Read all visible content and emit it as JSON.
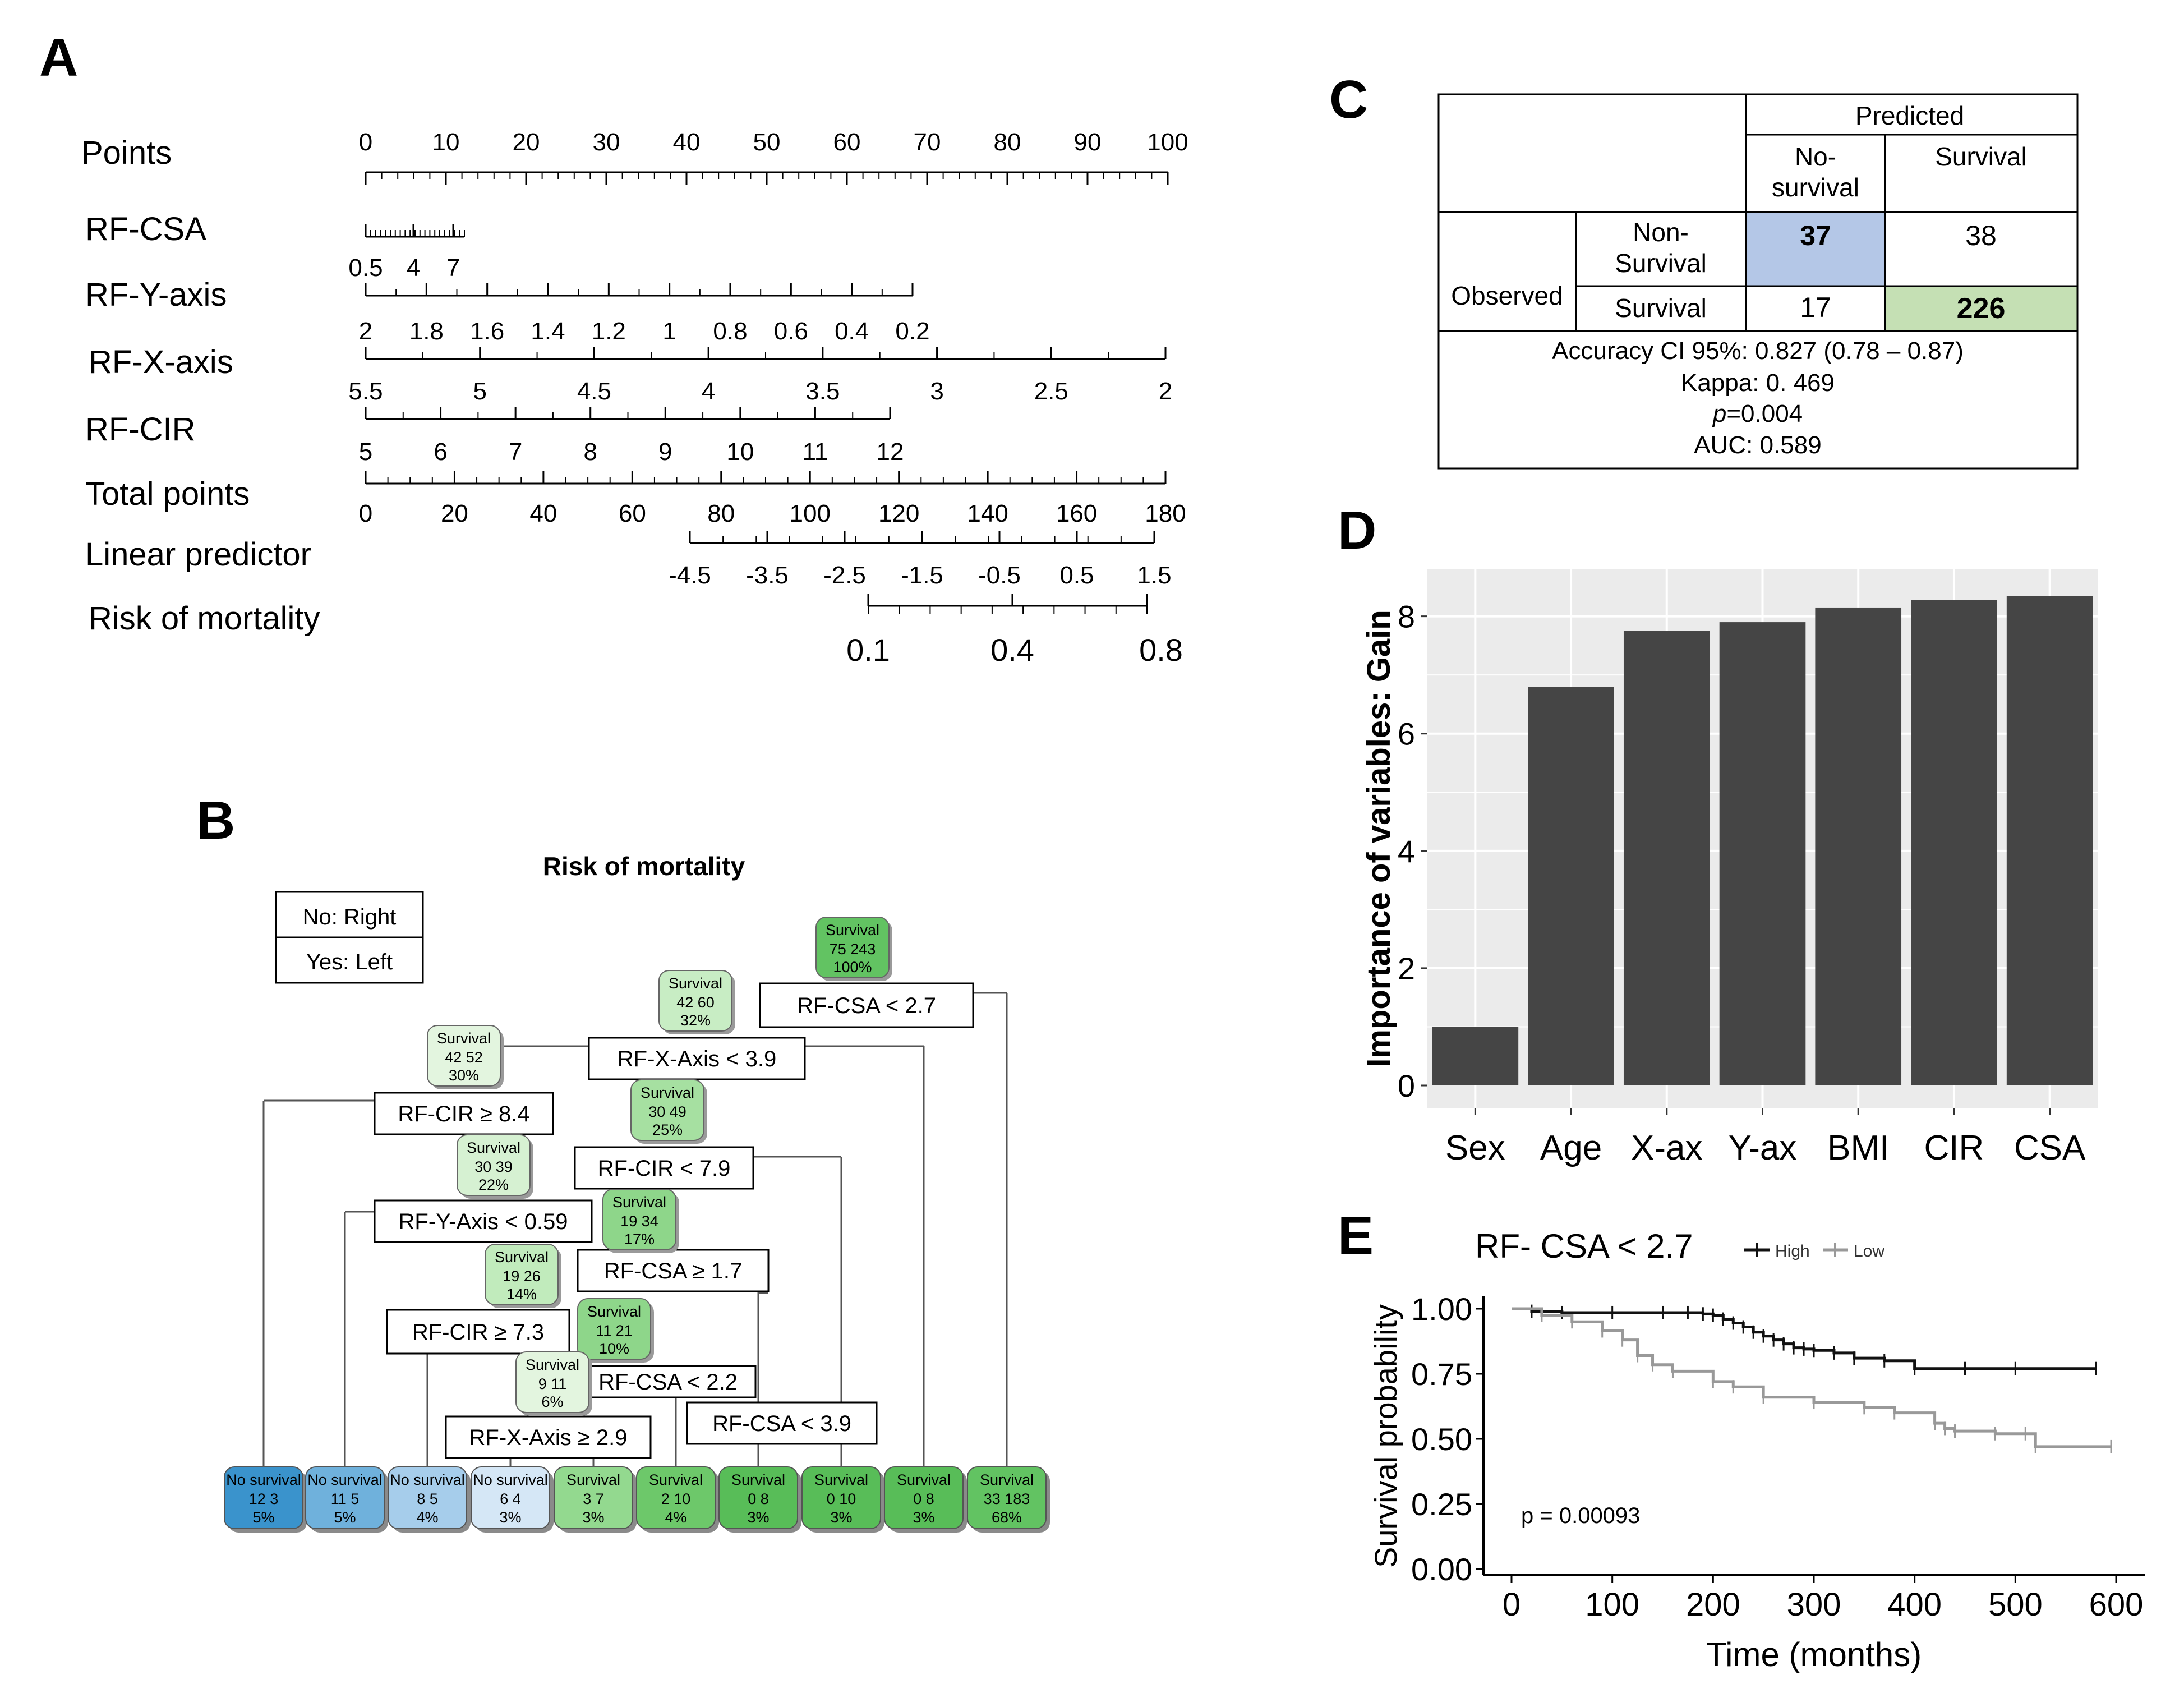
{
  "panel_labels": {
    "a": "A",
    "b": "B",
    "c": "C",
    "d": "D",
    "e": "E"
  },
  "nomogram": {
    "rows": [
      {
        "label": "Points",
        "ticks": [
          "0",
          "10",
          "20",
          "30",
          "40",
          "50",
          "60",
          "70",
          "80",
          "90",
          "100"
        ]
      },
      {
        "label": "RF-CSA",
        "ticks": [
          "0.5",
          "4",
          "7"
        ]
      },
      {
        "label": "RF-Y-axis",
        "ticks": [
          "2",
          "1.8",
          "1.6",
          "1.4",
          "1.2",
          "1",
          "0.8",
          "0.6",
          "0.4",
          "0.2"
        ]
      },
      {
        "label": "RF-X-axis",
        "ticks": [
          "5.5",
          "5",
          "4.5",
          "4",
          "3.5",
          "3",
          "2.5",
          "2"
        ]
      },
      {
        "label": "RF-CIR",
        "ticks": [
          "5",
          "6",
          "7",
          "8",
          "9",
          "10",
          "11",
          "12"
        ]
      },
      {
        "label": "Total points",
        "ticks": [
          "0",
          "20",
          "40",
          "60",
          "80",
          "100",
          "120",
          "140",
          "160",
          "180"
        ]
      },
      {
        "label": "Linear predictor",
        "ticks": [
          "-4.5",
          "-3.5",
          "-2.5",
          "-1.5",
          "-0.5",
          "0.5",
          "1.5"
        ]
      },
      {
        "label": "Risk of mortality",
        "ticks": [
          "0.1",
          "0.4",
          "0.8"
        ]
      }
    ]
  },
  "tree": {
    "title": "Risk of mortality",
    "legend": [
      "No: Right",
      "Yes: Left"
    ],
    "splits": [
      "RF-CSA < 2.7",
      "RF-X-Axis < 3.9",
      "RF-CIR ≥ 8.4",
      "RF-CIR < 7.9",
      "RF-Y-Axis < 0.59",
      "RF-CSA ≥ 1.7",
      "RF-CIR ≥ 7.3",
      "RF-CSA < 2.2",
      "RF-CSA < 3.9",
      "RF-X-Axis ≥ 2.9"
    ],
    "internal_nodes": [
      {
        "cls": "Survival",
        "counts": "75  243",
        "pct": "100%"
      },
      {
        "cls": "Survival",
        "counts": "42  60",
        "pct": "32%"
      },
      {
        "cls": "Survival",
        "counts": "42  52",
        "pct": "30%"
      },
      {
        "cls": "Survival",
        "counts": "30  49",
        "pct": "25%"
      },
      {
        "cls": "Survival",
        "counts": "30  39",
        "pct": "22%"
      },
      {
        "cls": "Survival",
        "counts": "19  34",
        "pct": "17%"
      },
      {
        "cls": "Survival",
        "counts": "19  26",
        "pct": "14%"
      },
      {
        "cls": "Survival",
        "counts": "11  21",
        "pct": "10%"
      },
      {
        "cls": "Survival",
        "counts": "9  11",
        "pct": "6%"
      }
    ],
    "leaves": [
      {
        "cls": "No survival",
        "counts": "12  3",
        "pct": "5%",
        "color": "#3a93cc"
      },
      {
        "cls": "No survival",
        "counts": "11  5",
        "pct": "5%",
        "color": "#6fb1dc"
      },
      {
        "cls": "No survival",
        "counts": "8  5",
        "pct": "4%",
        "color": "#a6cdeb"
      },
      {
        "cls": "No survival",
        "counts": "6  4",
        "pct": "3%",
        "color": "#d5e7f6"
      },
      {
        "cls": "Survival",
        "counts": "3  7",
        "pct": "3%",
        "color": "#93d98f"
      },
      {
        "cls": "Survival",
        "counts": "2  10",
        "pct": "4%",
        "color": "#6dc86a"
      },
      {
        "cls": "Survival",
        "counts": "0  8",
        "pct": "3%",
        "color": "#58bd58"
      },
      {
        "cls": "Survival",
        "counts": "0  10",
        "pct": "3%",
        "color": "#58bd58"
      },
      {
        "cls": "Survival",
        "counts": "0  8",
        "pct": "3%",
        "color": "#58bd58"
      },
      {
        "cls": "Survival",
        "counts": "33  183",
        "pct": "68%",
        "color": "#62c362"
      }
    ]
  },
  "confusion": {
    "predicted": "Predicted",
    "observed": "Observed",
    "col_no": [
      "No-",
      "survival"
    ],
    "col_survival": "Survival",
    "row_nonsurvival": [
      "Non-",
      "Survival"
    ],
    "row_survival": "Survival",
    "cells": {
      "nn": "37",
      "ns": "38",
      "sn": "17",
      "ss": "226"
    },
    "stats": [
      "Accuracy CI 95%: 0.827 (0.78 – 0.87)",
      "Kappa: 0. 469",
      "=0.004",
      "AUC: 0.589"
    ],
    "p_label": "p",
    "colors": {
      "nn": "#b4c7e7",
      "ss": "#c5e0b4"
    }
  },
  "chart_data": [
    {
      "type": "bar",
      "title": "",
      "categories": [
        "Sex",
        "Age",
        "X-ax",
        "Y-ax",
        "BMI",
        "CIR",
        "CSA"
      ],
      "values": [
        1.0,
        6.8,
        7.75,
        7.9,
        8.15,
        8.28,
        8.35
      ],
      "ylabel": "Importance of variables: Gain",
      "xlabel": "",
      "ylim": [
        0,
        8.8
      ],
      "yticks": [
        0,
        2,
        4,
        6,
        8
      ],
      "bar_color": "#454545",
      "bg_color": "#ebebeb"
    },
    {
      "type": "line",
      "title": "RF- CSA < 2.7",
      "xlabel": "Time (months)",
      "ylabel": "Survival probability",
      "xlim": [
        0,
        600
      ],
      "ylim": [
        0,
        1
      ],
      "xticks": [
        0,
        100,
        200,
        300,
        400,
        500,
        600
      ],
      "yticks": [
        "0.00",
        "0.25",
        "0.50",
        "0.75",
        "1.00"
      ],
      "annotation": "p = 0.00093",
      "series": [
        {
          "name": "High",
          "color": "#111111",
          "x": [
            0,
            20,
            50,
            100,
            150,
            175,
            190,
            200,
            210,
            220,
            230,
            240,
            250,
            260,
            270,
            280,
            290,
            300,
            320,
            340,
            370,
            400,
            450,
            500,
            580
          ],
          "y": [
            1.0,
            0.99,
            0.985,
            0.985,
            0.985,
            0.985,
            0.98,
            0.975,
            0.96,
            0.945,
            0.93,
            0.91,
            0.895,
            0.88,
            0.865,
            0.85,
            0.845,
            0.84,
            0.83,
            0.81,
            0.8,
            0.77,
            0.77,
            0.77,
            0.77
          ]
        },
        {
          "name": "Low",
          "color": "#999999",
          "x": [
            0,
            30,
            60,
            90,
            110,
            125,
            140,
            160,
            200,
            220,
            250,
            300,
            350,
            380,
            420,
            430,
            440,
            480,
            510,
            520,
            595
          ],
          "y": [
            1.0,
            0.975,
            0.95,
            0.915,
            0.88,
            0.82,
            0.785,
            0.76,
            0.72,
            0.7,
            0.66,
            0.64,
            0.62,
            0.6,
            0.56,
            0.54,
            0.53,
            0.52,
            0.52,
            0.47,
            0.47
          ]
        }
      ]
    }
  ]
}
